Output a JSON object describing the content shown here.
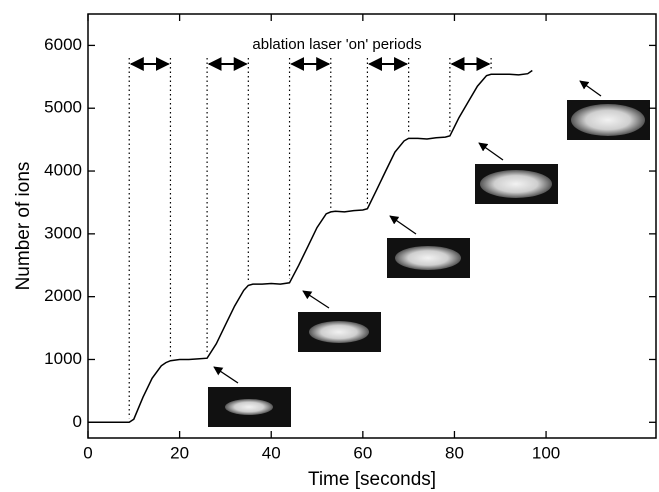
{
  "chart_data": {
    "type": "line",
    "annotation": "ablation laser 'on' periods",
    "x_label": "Time  [seconds]",
    "y_label": "Number of ions",
    "xlim": [
      0,
      124
    ],
    "xticks": [
      0,
      20,
      40,
      60,
      80,
      100
    ],
    "ylim": [
      -250,
      6500
    ],
    "yticks": [
      0,
      1000,
      2000,
      3000,
      4000,
      5000,
      6000
    ],
    "periods": [
      [
        9,
        18
      ],
      [
        26,
        35
      ],
      [
        44,
        53
      ],
      [
        61,
        70
      ],
      [
        79,
        88
      ]
    ],
    "series": [
      {
        "color": "#000000",
        "x": [
          0,
          9,
          10,
          12,
          14,
          16,
          17,
          18,
          20,
          22,
          24,
          26,
          28,
          30,
          32,
          34,
          35,
          36,
          38,
          40,
          42,
          44,
          46,
          48,
          50,
          52,
          53,
          54,
          56,
          58,
          60,
          61,
          63,
          65,
          67,
          69,
          70,
          72,
          74,
          76,
          78,
          79,
          81,
          83,
          85,
          87,
          88,
          90,
          92,
          94,
          96,
          97
        ],
        "values": [
          0,
          0,
          50,
          400,
          700,
          900,
          950,
          980,
          1000,
          1000,
          1010,
          1020,
          1250,
          1550,
          1850,
          2100,
          2180,
          2200,
          2200,
          2210,
          2200,
          2220,
          2500,
          2800,
          3100,
          3320,
          3350,
          3360,
          3350,
          3370,
          3380,
          3400,
          3700,
          4000,
          4300,
          4480,
          4520,
          4520,
          4510,
          4530,
          4540,
          4560,
          4850,
          5100,
          5350,
          5520,
          5540,
          5540,
          5540,
          5530,
          5550,
          5600
        ]
      }
    ]
  }
}
